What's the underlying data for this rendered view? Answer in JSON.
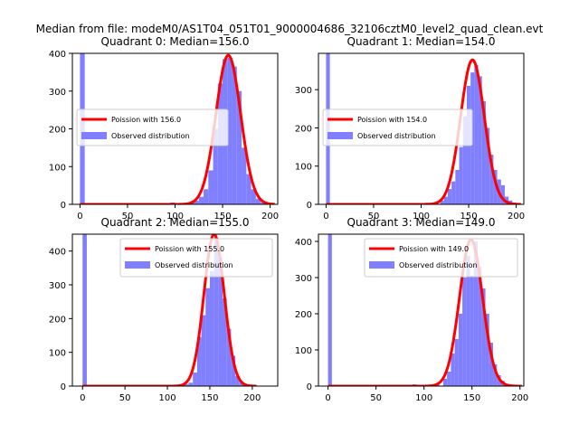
{
  "suptitle": "Median from file: modeM0/AS1T04_051T01_9000004686_32106cztM0_level2_quad_clean.evt",
  "colors": {
    "poisson": "#ff0000",
    "observed": "#7f7fff",
    "axis": "#000000",
    "legend_border": "#cccccc"
  },
  "chart_data": [
    {
      "type": "bar",
      "title": "Quadrant 0: Median=156.0",
      "median": 156.0,
      "xlim": [
        -8,
        208
      ],
      "ylim": [
        0,
        400
      ],
      "xticks": [
        0,
        50,
        100,
        150,
        200
      ],
      "yticks": [
        0,
        100,
        200,
        300,
        400
      ],
      "legend": {
        "position": "center-left",
        "poisson_label": "Poission with 156.0",
        "observed_label": "Observed distribution"
      },
      "poisson_mean": 156.0,
      "poisson_peak": 395,
      "poisson_sigma": 13,
      "bin_width": 5,
      "bars": [
        {
          "x": 0,
          "y": 400
        },
        {
          "x": 95,
          "y": 5
        },
        {
          "x": 115,
          "y": 4
        },
        {
          "x": 120,
          "y": 10
        },
        {
          "x": 125,
          "y": 20
        },
        {
          "x": 130,
          "y": 40
        },
        {
          "x": 135,
          "y": 90
        },
        {
          "x": 140,
          "y": 200
        },
        {
          "x": 145,
          "y": 320
        },
        {
          "x": 150,
          "y": 385
        },
        {
          "x": 155,
          "y": 388
        },
        {
          "x": 160,
          "y": 365
        },
        {
          "x": 165,
          "y": 300
        },
        {
          "x": 170,
          "y": 150
        },
        {
          "x": 175,
          "y": 80
        },
        {
          "x": 180,
          "y": 40
        },
        {
          "x": 185,
          "y": 15
        },
        {
          "x": 190,
          "y": 5
        }
      ]
    },
    {
      "type": "bar",
      "title": "Quadrant 1: Median=154.0",
      "median": 154.0,
      "xlim": [
        -8,
        208
      ],
      "ylim": [
        0,
        395
      ],
      "xticks": [
        0,
        50,
        100,
        150,
        200
      ],
      "yticks": [
        0,
        100,
        200,
        300
      ],
      "legend": {
        "position": "center-left",
        "poisson_label": "Poission with 154.0",
        "observed_label": "Observed distribution"
      },
      "poisson_mean": 154.0,
      "poisson_peak": 378,
      "poisson_sigma": 12.5,
      "bin_width": 4,
      "bars": [
        {
          "x": 0,
          "y": 395
        },
        {
          "x": 88,
          "y": 2
        },
        {
          "x": 104,
          "y": 4
        },
        {
          "x": 112,
          "y": 5
        },
        {
          "x": 120,
          "y": 10
        },
        {
          "x": 124,
          "y": 20
        },
        {
          "x": 128,
          "y": 40
        },
        {
          "x": 132,
          "y": 60
        },
        {
          "x": 136,
          "y": 90
        },
        {
          "x": 140,
          "y": 150
        },
        {
          "x": 144,
          "y": 230
        },
        {
          "x": 148,
          "y": 310
        },
        {
          "x": 152,
          "y": 345
        },
        {
          "x": 156,
          "y": 365
        },
        {
          "x": 160,
          "y": 335
        },
        {
          "x": 164,
          "y": 270
        },
        {
          "x": 168,
          "y": 200
        },
        {
          "x": 172,
          "y": 130
        },
        {
          "x": 176,
          "y": 90
        },
        {
          "x": 180,
          "y": 65
        },
        {
          "x": 184,
          "y": 50
        },
        {
          "x": 188,
          "y": 20
        },
        {
          "x": 192,
          "y": 10
        },
        {
          "x": 196,
          "y": 5
        }
      ]
    },
    {
      "type": "bar",
      "title": "Quadrant 2: Median=155.0",
      "median": 155.0,
      "xlim": [
        -12,
        230
      ],
      "ylim": [
        0,
        450
      ],
      "xticks": [
        0,
        50,
        100,
        150,
        200
      ],
      "yticks": [
        0,
        100,
        200,
        300,
        400
      ],
      "legend": {
        "position": "top-right",
        "poisson_label": "Poission with 155.0",
        "observed_label": "Observed distribution"
      },
      "poisson_mean": 155.0,
      "poisson_peak": 450,
      "poisson_sigma": 12,
      "bin_width": 5,
      "bars": [
        {
          "x": 0,
          "y": 450
        },
        {
          "x": 100,
          "y": 4
        },
        {
          "x": 120,
          "y": 6
        },
        {
          "x": 125,
          "y": 10
        },
        {
          "x": 130,
          "y": 40
        },
        {
          "x": 135,
          "y": 145
        },
        {
          "x": 140,
          "y": 210
        },
        {
          "x": 145,
          "y": 290
        },
        {
          "x": 150,
          "y": 340
        },
        {
          "x": 155,
          "y": 440
        },
        {
          "x": 160,
          "y": 380
        },
        {
          "x": 165,
          "y": 260
        },
        {
          "x": 170,
          "y": 170
        },
        {
          "x": 175,
          "y": 90
        },
        {
          "x": 180,
          "y": 30
        },
        {
          "x": 185,
          "y": 10
        },
        {
          "x": 190,
          "y": 5
        }
      ]
    },
    {
      "type": "bar",
      "title": "Quadrant 3: Median=149.0",
      "median": 149.0,
      "xlim": [
        -10,
        204
      ],
      "ylim": [
        0,
        420
      ],
      "xticks": [
        0,
        50,
        100,
        150,
        200
      ],
      "yticks": [
        0,
        100,
        200,
        300,
        400
      ],
      "legend": {
        "position": "top-right",
        "poisson_label": "Poission with 149.0",
        "observed_label": "Observed distribution"
      },
      "poisson_mean": 149.0,
      "poisson_peak": 405,
      "poisson_sigma": 12,
      "bin_width": 4,
      "bars": [
        {
          "x": 0,
          "y": 420
        },
        {
          "x": 88,
          "y": 5
        },
        {
          "x": 112,
          "y": 4
        },
        {
          "x": 120,
          "y": 20
        },
        {
          "x": 124,
          "y": 40
        },
        {
          "x": 128,
          "y": 90
        },
        {
          "x": 132,
          "y": 130
        },
        {
          "x": 136,
          "y": 200
        },
        {
          "x": 140,
          "y": 300
        },
        {
          "x": 144,
          "y": 360
        },
        {
          "x": 148,
          "y": 305
        },
        {
          "x": 152,
          "y": 400
        },
        {
          "x": 156,
          "y": 330
        },
        {
          "x": 160,
          "y": 270
        },
        {
          "x": 164,
          "y": 200
        },
        {
          "x": 168,
          "y": 120
        },
        {
          "x": 172,
          "y": 60
        },
        {
          "x": 176,
          "y": 30
        },
        {
          "x": 180,
          "y": 15
        },
        {
          "x": 184,
          "y": 5
        },
        {
          "x": 188,
          "y": 3
        }
      ]
    }
  ]
}
